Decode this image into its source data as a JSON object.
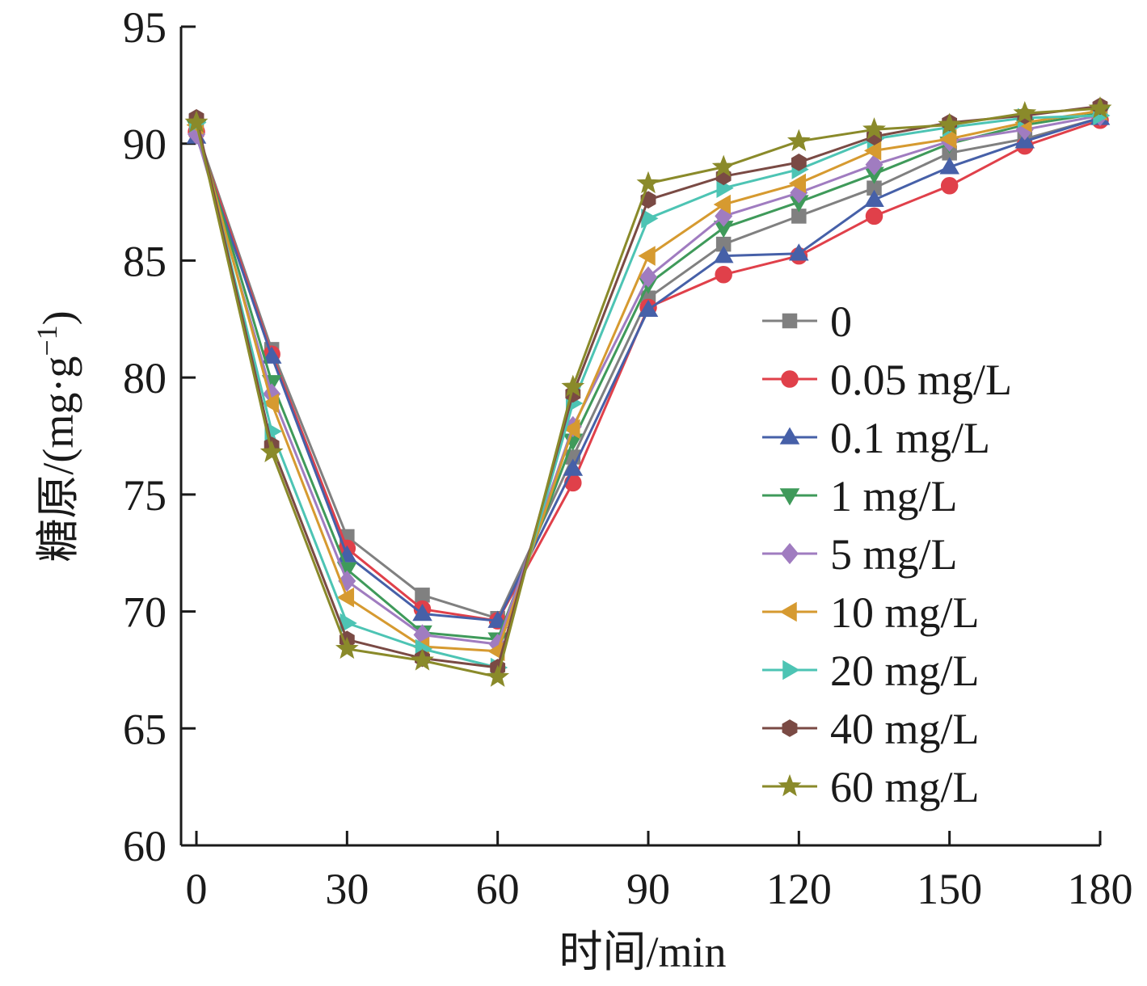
{
  "chart_data": {
    "type": "line",
    "title": "",
    "xlabel": "时间/min",
    "ylabel_main": "糖原/(mg·g",
    "ylabel_sup": "−1",
    "ylabel_end": ")",
    "xlim": [
      0,
      180
    ],
    "ylim": [
      60,
      95
    ],
    "xticks": [
      0,
      30,
      60,
      90,
      120,
      150,
      180
    ],
    "yticks": [
      60,
      65,
      70,
      75,
      80,
      85,
      90,
      95
    ],
    "grid": false,
    "legend_position": "right",
    "x": [
      0,
      15,
      30,
      45,
      60,
      75,
      90,
      105,
      120,
      135,
      150,
      165,
      180
    ],
    "series": [
      {
        "name": "0",
        "marker": "square",
        "color": "#808080",
        "values": [
          90.6,
          81.2,
          73.2,
          70.7,
          69.7,
          76.6,
          83.4,
          85.7,
          86.9,
          88.1,
          89.6,
          90.2,
          91.1
        ]
      },
      {
        "name": "0.05 mg/L",
        "marker": "circle",
        "color": "#e0404a",
        "values": [
          90.5,
          81.0,
          72.7,
          70.1,
          69.6,
          75.5,
          83.0,
          84.4,
          85.2,
          86.9,
          88.2,
          89.9,
          91.0
        ]
      },
      {
        "name": "0.1 mg/L",
        "marker": "triangle-up",
        "color": "#4660a8",
        "values": [
          90.3,
          80.9,
          72.4,
          69.9,
          69.6,
          76.1,
          82.9,
          85.2,
          85.3,
          87.6,
          89.0,
          90.1,
          91.1
        ]
      },
      {
        "name": "1 mg/L",
        "marker": "triangle-down",
        "color": "#3f9a5a",
        "values": [
          90.7,
          79.8,
          71.8,
          69.1,
          68.8,
          77.3,
          84.0,
          86.4,
          87.5,
          88.7,
          90.0,
          90.8,
          91.3
        ]
      },
      {
        "name": "5 mg/L",
        "marker": "diamond",
        "color": "#a07cc0",
        "values": [
          90.4,
          79.3,
          71.3,
          69.0,
          68.6,
          77.9,
          84.3,
          86.9,
          87.9,
          89.1,
          90.1,
          90.6,
          91.2
        ]
      },
      {
        "name": "10 mg/L",
        "marker": "triangle-left",
        "color": "#d69a30",
        "values": [
          90.8,
          78.9,
          70.6,
          68.5,
          68.3,
          77.8,
          85.2,
          87.4,
          88.3,
          89.7,
          90.2,
          90.9,
          91.4
        ]
      },
      {
        "name": "20 mg/L",
        "marker": "triangle-right",
        "color": "#4dc4b4",
        "values": [
          90.9,
          77.7,
          69.5,
          68.4,
          67.6,
          78.9,
          86.8,
          88.1,
          88.9,
          90.2,
          90.7,
          91.1,
          91.2
        ]
      },
      {
        "name": "40 mg/L",
        "marker": "hexagon",
        "color": "#7a4a44",
        "values": [
          91.1,
          77.1,
          68.8,
          68.0,
          67.6,
          79.3,
          87.6,
          88.6,
          89.2,
          90.3,
          90.9,
          91.2,
          91.6
        ]
      },
      {
        "name": "60 mg/L",
        "marker": "star",
        "color": "#8a8a2a",
        "values": [
          90.9,
          76.8,
          68.4,
          67.9,
          67.2,
          79.6,
          88.3,
          89.0,
          90.1,
          90.6,
          90.8,
          91.3,
          91.5
        ]
      }
    ]
  }
}
